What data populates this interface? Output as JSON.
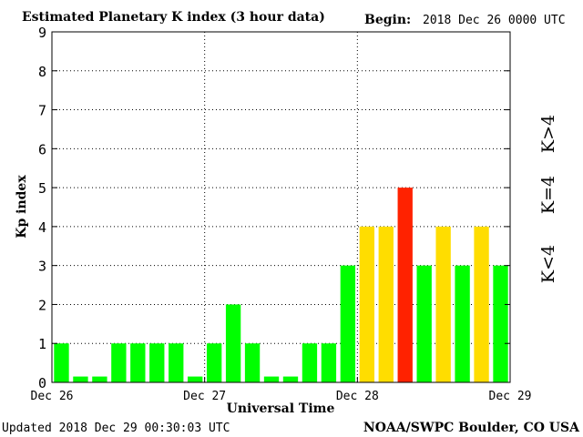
{
  "header": {
    "title": "Estimated Planetary K index (3 hour data)",
    "begin_label": "Begin:",
    "begin_value": "2018 Dec 26 0000 UTC"
  },
  "footer": {
    "updated": "Updated 2018 Dec 29 00:30:03 UTC",
    "credit": "NOAA/SWPC Boulder, CO USA"
  },
  "legend": {
    "low": "K<4",
    "eq": "K=4",
    "high": "K>4"
  },
  "colors": {
    "low": "#00ff00",
    "eq": "#ffdd00",
    "high": "#ff2200",
    "frame": "#000000",
    "grid": "#000000"
  },
  "chart_data": {
    "type": "bar",
    "title": "Estimated Planetary K index (3 hour data)",
    "xlabel": "Universal Time",
    "ylabel": "Kp index",
    "ylim": [
      0,
      9
    ],
    "yticks": [
      "0",
      "1",
      "2",
      "3",
      "4",
      "5",
      "6",
      "7",
      "8",
      "9"
    ],
    "xticks": [
      "Dec 26",
      "Dec 27",
      "Dec 28",
      "Dec 29"
    ],
    "grid": true,
    "interval_hours": 3,
    "values": [
      1,
      0,
      0,
      1,
      1,
      1,
      1,
      0,
      1,
      2,
      1,
      0,
      0,
      1,
      1,
      3,
      4,
      4,
      5,
      3,
      4,
      3,
      4,
      3
    ],
    "min_bar_value": 0.15
  }
}
